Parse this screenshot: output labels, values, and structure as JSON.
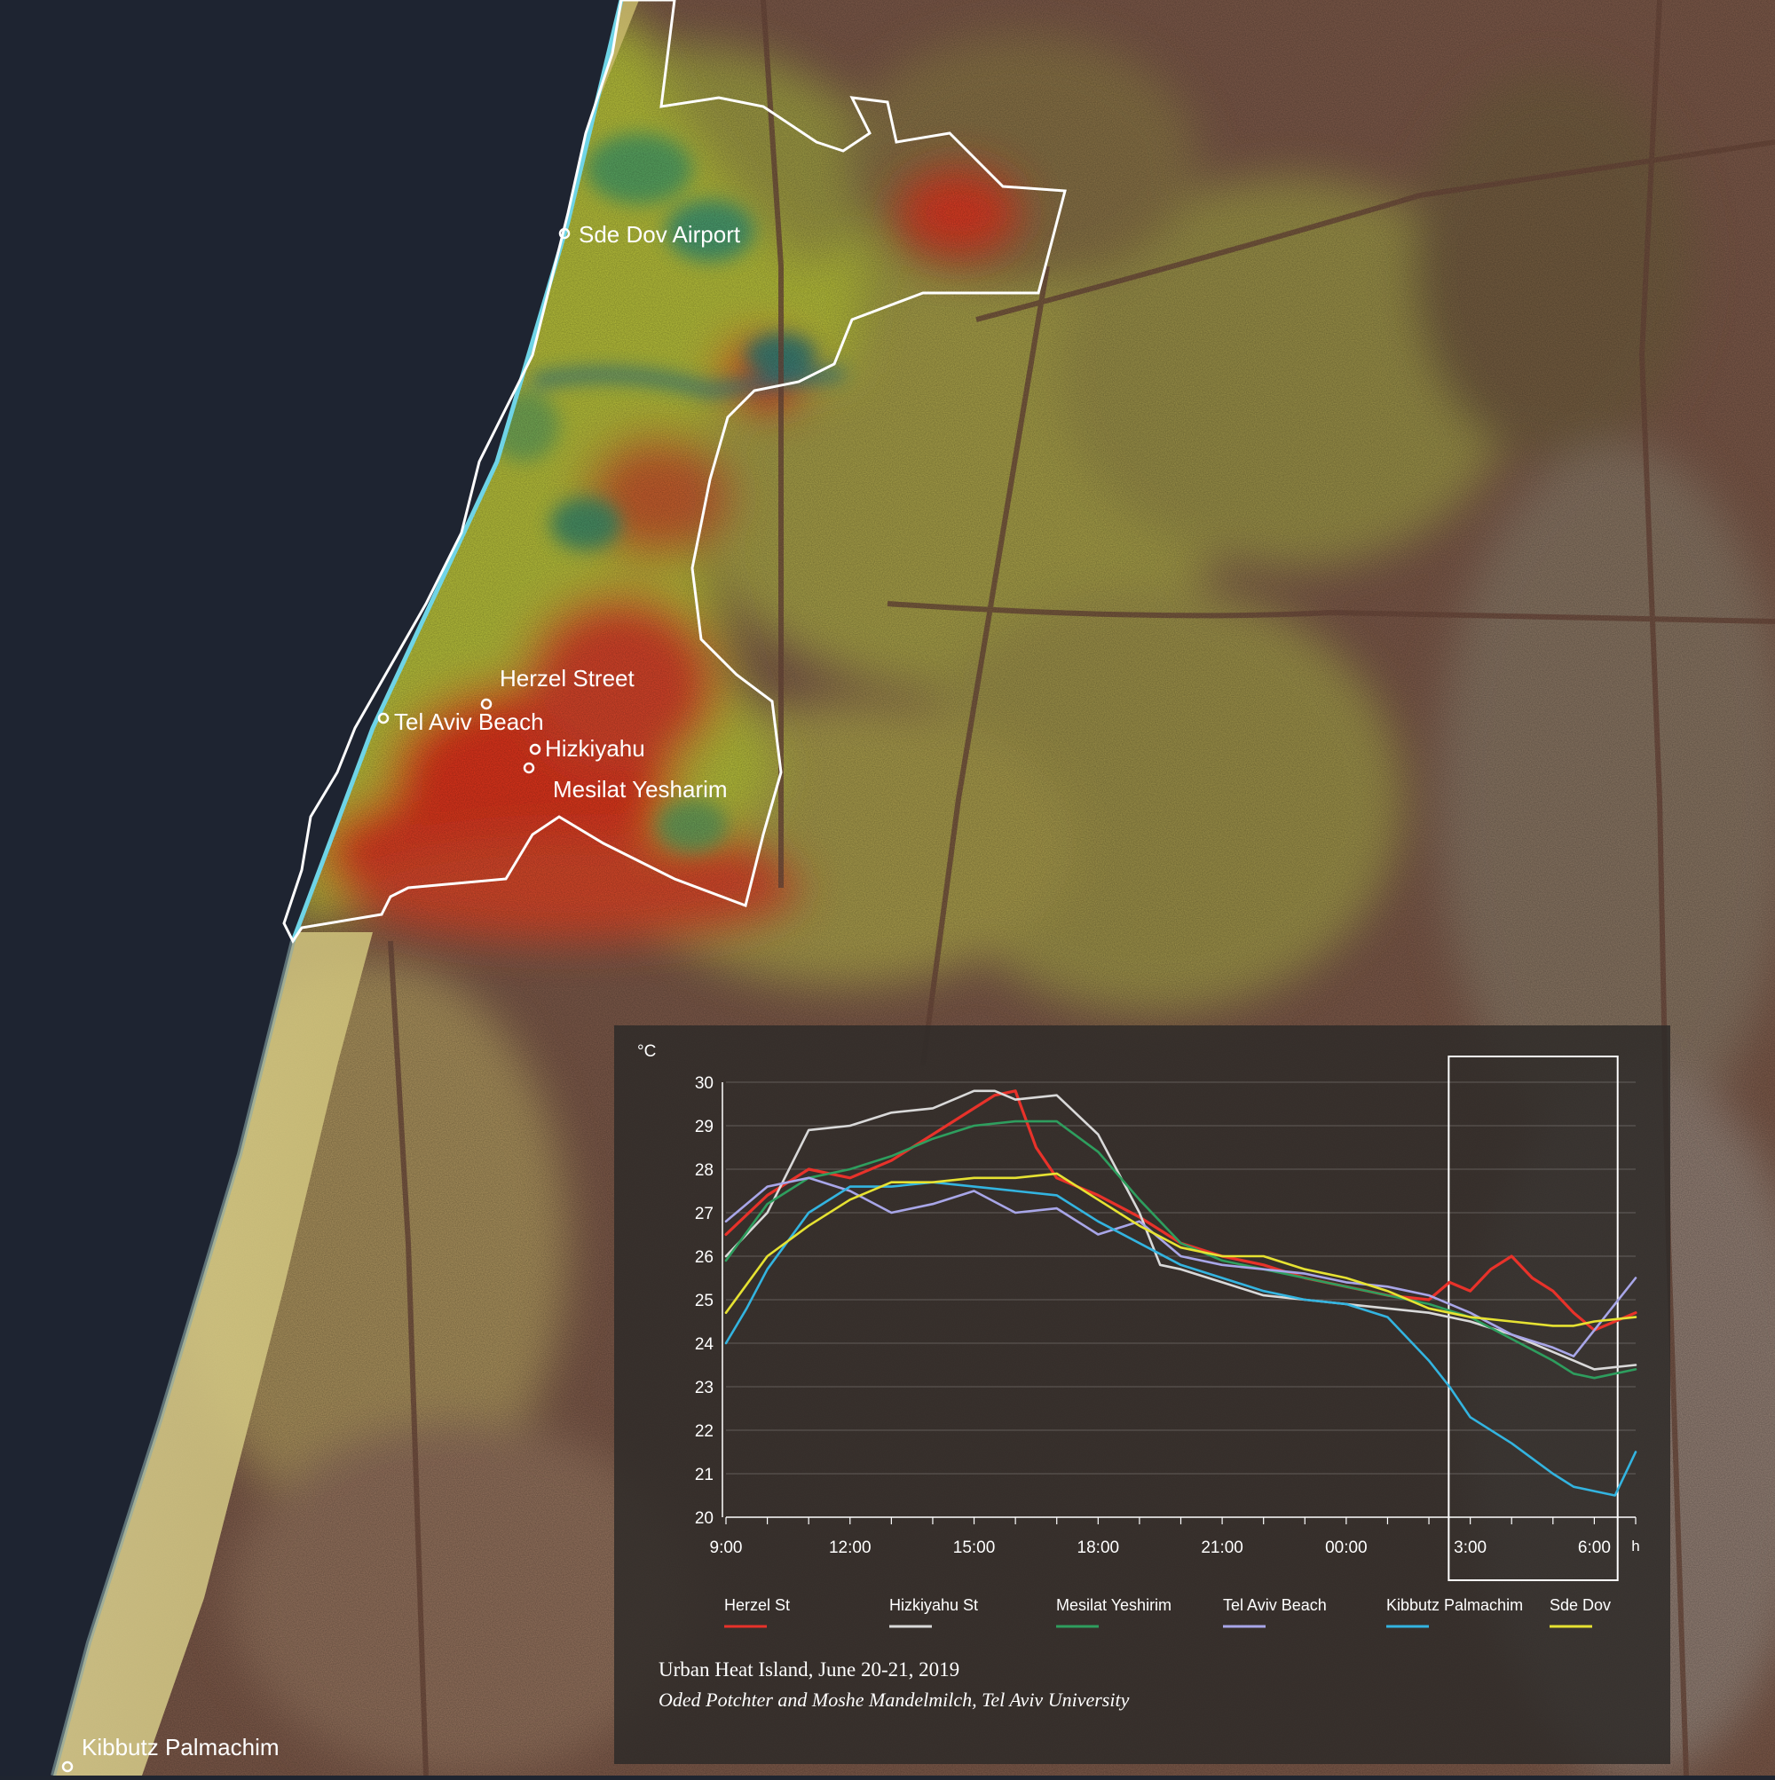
{
  "map": {
    "places": [
      {
        "key": "sde_dov",
        "label": "Sde Dov Airport"
      },
      {
        "key": "herzel",
        "label": "Herzel Street"
      },
      {
        "key": "tel_aviv_beach",
        "label": "Tel Aviv Beach"
      },
      {
        "key": "hizkiyahu",
        "label": "Hizkiyahu"
      },
      {
        "key": "mesilat",
        "label": "Mesilat Yesharim"
      },
      {
        "key": "palmachim",
        "label": "Kibbutz Palmachim"
      }
    ]
  },
  "colors": {
    "sea": "#1e2431",
    "shoreline": "#6fd4e6",
    "boundary": "#ffffff",
    "hot": "#e02a1c",
    "warm": "#c9c431",
    "cool": "#2f8f4e",
    "panel": "#2e2b29"
  },
  "chart_data": {
    "type": "line",
    "y_unit": "°C",
    "x_unit": "h",
    "ylim": [
      20,
      30
    ],
    "y_ticks": [
      20,
      21,
      22,
      23,
      24,
      25,
      26,
      27,
      28,
      29,
      30
    ],
    "x_ticks": [
      "9:00",
      "12:00",
      "15:00",
      "18:00",
      "21:00",
      "00:00",
      "3:00",
      "6:00"
    ],
    "x_range_hours": [
      0,
      22
    ],
    "highlight_window_hours": [
      17.5,
      21.5
    ],
    "series": [
      {
        "name": "Herzel St",
        "color": "#e8322a",
        "x": [
          0,
          1,
          2,
          3,
          4,
          5,
          6,
          6.5,
          7,
          7.5,
          8,
          9,
          10,
          11,
          12,
          13,
          14,
          15,
          16,
          17,
          17.5,
          18,
          18.5,
          19,
          19.5,
          20,
          20.5,
          21,
          22
        ],
        "y": [
          26.5,
          27.4,
          28.0,
          27.8,
          28.2,
          28.8,
          29.4,
          29.7,
          29.8,
          28.5,
          27.8,
          27.4,
          26.9,
          26.3,
          26.0,
          25.8,
          25.5,
          25.3,
          25.1,
          25.0,
          25.4,
          25.2,
          25.7,
          26.0,
          25.5,
          25.2,
          24.7,
          24.3,
          24.7
        ]
      },
      {
        "name": "Hizkiyahu St",
        "color": "#d9d9d9",
        "x": [
          0,
          1,
          2,
          3,
          4,
          5,
          6,
          6.5,
          7,
          8,
          9,
          10,
          10.5,
          11,
          12,
          13,
          14,
          15,
          16,
          17,
          18,
          19,
          20,
          20.5,
          21,
          22
        ],
        "y": [
          26.0,
          27.0,
          28.9,
          29.0,
          29.3,
          29.4,
          29.8,
          29.8,
          29.6,
          29.7,
          28.8,
          27.0,
          25.8,
          25.7,
          25.4,
          25.1,
          25.0,
          24.9,
          24.8,
          24.7,
          24.5,
          24.2,
          23.8,
          23.6,
          23.4,
          23.5
        ]
      },
      {
        "name": "Mesilat Yeshirim",
        "color": "#2e9e5e",
        "x": [
          0,
          1,
          2,
          3,
          4,
          5,
          6,
          7,
          8,
          9,
          10,
          11,
          12,
          13,
          14,
          15,
          16,
          17,
          18,
          19,
          20,
          20.5,
          21,
          22
        ],
        "y": [
          25.9,
          27.2,
          27.8,
          28.0,
          28.3,
          28.7,
          29.0,
          29.1,
          29.1,
          28.4,
          27.3,
          26.3,
          25.9,
          25.7,
          25.5,
          25.3,
          25.1,
          24.9,
          24.6,
          24.1,
          23.6,
          23.3,
          23.2,
          23.4
        ]
      },
      {
        "name": "Tel Aviv Beach",
        "color": "#a8a6e8",
        "x": [
          0,
          1,
          2,
          3,
          4,
          5,
          6,
          7,
          8,
          9,
          10,
          11,
          12,
          13,
          14,
          15,
          16,
          17,
          18,
          19,
          20,
          20.5,
          21,
          22
        ],
        "y": [
          26.8,
          27.6,
          27.8,
          27.5,
          27.0,
          27.2,
          27.5,
          27.0,
          27.1,
          26.5,
          26.8,
          26.0,
          25.8,
          25.7,
          25.6,
          25.4,
          25.3,
          25.1,
          24.7,
          24.2,
          23.9,
          23.7,
          24.3,
          25.5
        ]
      },
      {
        "name": "Kibbutz Palmachim",
        "color": "#33b4e0",
        "x": [
          0,
          0.5,
          1,
          2,
          3,
          4,
          5,
          6,
          7,
          8,
          9,
          10,
          11,
          12,
          13,
          14,
          15,
          16,
          17,
          17.5,
          18,
          19,
          20,
          20.5,
          21,
          21.5,
          22
        ],
        "y": [
          24.0,
          24.8,
          25.7,
          27.0,
          27.6,
          27.6,
          27.7,
          27.6,
          27.5,
          27.4,
          26.8,
          26.3,
          25.8,
          25.5,
          25.2,
          25.0,
          24.9,
          24.6,
          23.6,
          23.0,
          22.3,
          21.7,
          21.0,
          20.7,
          20.6,
          20.5,
          21.5
        ]
      },
      {
        "name": "Sde Dov",
        "color": "#e6e232",
        "x": [
          0,
          1,
          2,
          3,
          4,
          5,
          6,
          7,
          8,
          9,
          10,
          11,
          12,
          13,
          14,
          15,
          16,
          17,
          18,
          19,
          20,
          20.5,
          21,
          22
        ],
        "y": [
          24.7,
          26.0,
          26.7,
          27.3,
          27.7,
          27.7,
          27.8,
          27.8,
          27.9,
          27.3,
          26.7,
          26.2,
          26.0,
          26.0,
          25.7,
          25.5,
          25.2,
          24.8,
          24.6,
          24.5,
          24.4,
          24.4,
          24.5,
          24.6
        ]
      }
    ],
    "caption_title": "Urban  Heat Island, June 20-21, 2019",
    "caption_credit": "Oded Potchter and Moshe Mandelmilch, Tel Aviv University"
  }
}
